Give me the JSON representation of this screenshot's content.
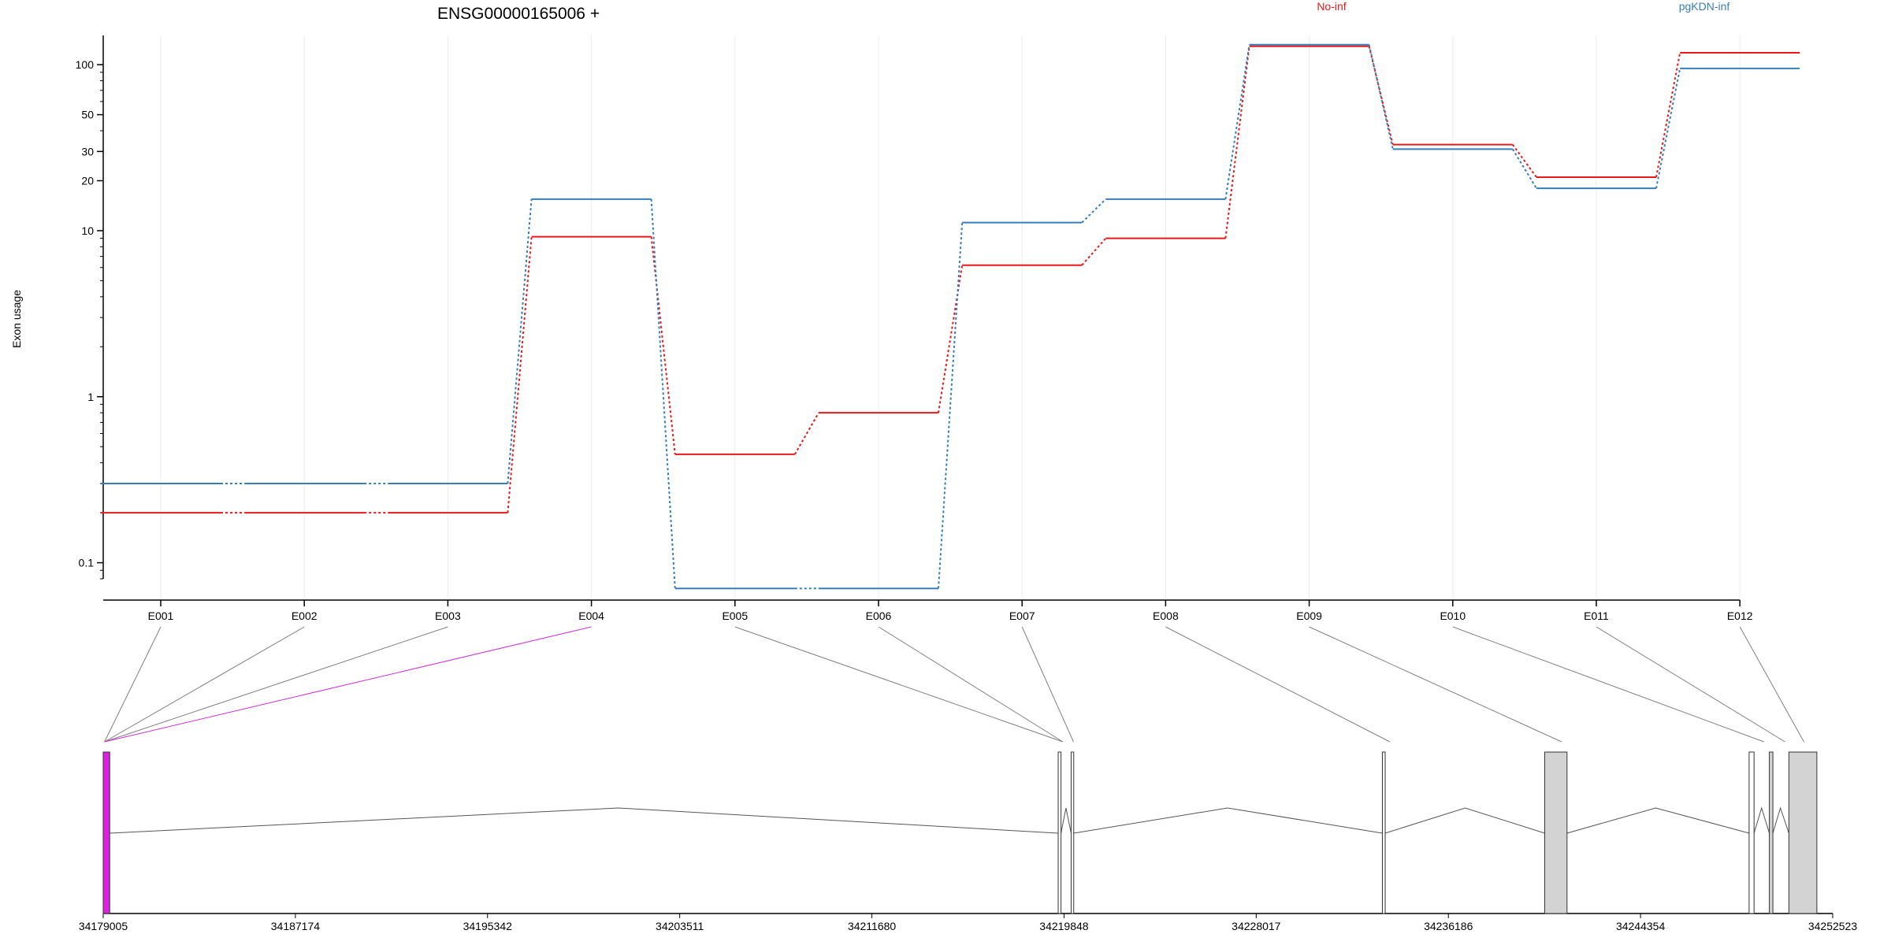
{
  "chart_data": {
    "type": "line",
    "title": "ENSG00000165006 +",
    "xlabel": "",
    "ylabel": "Exon usage",
    "y_scale": "log",
    "ylim": [
      0.08,
      150
    ],
    "yticks": [
      0.1,
      1,
      10,
      20,
      30,
      50,
      100
    ],
    "ytick_labels": [
      "0.1",
      "1",
      "10",
      "20",
      "30",
      "50",
      "100"
    ],
    "grid": "vertical, light",
    "legend_placement": "top, above plot",
    "categories": [
      "E001",
      "E002",
      "E003",
      "E004",
      "E005",
      "E006",
      "E007",
      "E008",
      "E009",
      "E010",
      "E011",
      "E012"
    ],
    "series": [
      {
        "name": "No-inf",
        "color": "#E41A1C",
        "values": [
          0.2,
          0.2,
          0.2,
          9.2,
          0.45,
          0.8,
          6.2,
          9.0,
          129,
          33,
          21,
          118
        ]
      },
      {
        "name": "pgKDN-inf",
        "color": "#377EB8",
        "values": [
          0.3,
          0.3,
          0.3,
          15.5,
          0.07,
          0.07,
          11.2,
          15.5,
          132,
          31,
          18,
          95
        ]
      }
    ],
    "highlighted_exon": {
      "label": "E004",
      "color": "#CC33CC"
    },
    "gene_model": {
      "genomic_ticks": [
        "34179005",
        "34187174",
        "34195342",
        "34203511",
        "34211680",
        "34219848",
        "34228017",
        "34236186",
        "34244354",
        "34252523"
      ],
      "range": [
        34179005,
        34252523
      ],
      "exon_connector_targets": [
        34179060,
        34179060,
        34179060,
        34179060,
        34219800,
        34219800,
        34220250,
        34233700,
        34241000,
        34249600,
        34250500,
        34251300
      ],
      "transcript_exons": [
        {
          "start": 34179005,
          "end": 34179280,
          "fill": "#E020E0"
        },
        {
          "start": 34219600,
          "end": 34219720,
          "fill": "#ffffff"
        },
        {
          "start": 34220150,
          "end": 34220260,
          "fill": "#ffffff"
        },
        {
          "start": 34233380,
          "end": 34233500,
          "fill": "#ffffff"
        },
        {
          "start": 34240280,
          "end": 34241230,
          "fill": "#D3D3D3"
        },
        {
          "start": 34248970,
          "end": 34249180,
          "fill": "#ffffff"
        },
        {
          "start": 34249830,
          "end": 34249980,
          "fill": "#D3D3D3"
        },
        {
          "start": 34250660,
          "end": 34251850,
          "fill": "#D3D3D3"
        }
      ],
      "intron_peaks": [
        {
          "x": 34200900,
          "level": "high"
        },
        {
          "x": 34219930,
          "level": "high"
        },
        {
          "x": 34226800,
          "level": "high"
        },
        {
          "x": 34236900,
          "level": "high"
        },
        {
          "x": 34245000,
          "level": "high"
        },
        {
          "x": 34249500,
          "level": "high"
        },
        {
          "x": 34250300,
          "level": "high"
        }
      ]
    }
  }
}
